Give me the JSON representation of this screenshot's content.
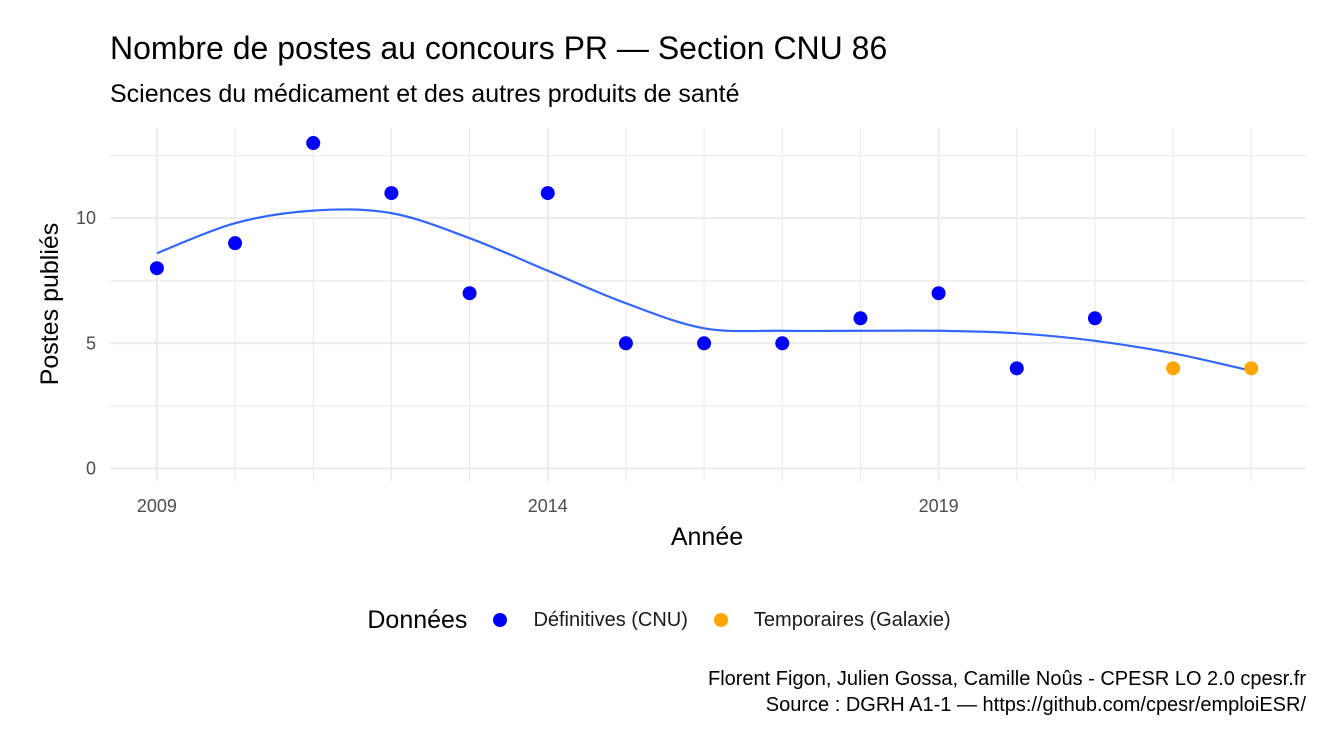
{
  "chart_data": {
    "type": "scatter",
    "title": "Nombre de postes au concours PR  —  Section CNU 86",
    "subtitle": "Sciences du médicament et des autres produits de santé",
    "xlabel": "Année",
    "ylabel": "Postes publiés",
    "xlim": [
      2008.4,
      2023.7
    ],
    "ylim": [
      -0.5,
      13.6
    ],
    "x_ticks": [
      2009,
      2014,
      2019
    ],
    "y_ticks": [
      0,
      5,
      10
    ],
    "grid": true,
    "legend_position": "bottom",
    "legend_title": "Données",
    "series": [
      {
        "name": "Définitives (CNU)",
        "color": "#0000ff",
        "x": [
          2009,
          2010,
          2011,
          2012,
          2013,
          2014,
          2015,
          2016,
          2017,
          2018,
          2019,
          2020,
          2021
        ],
        "y": [
          8,
          9,
          13,
          11,
          7,
          11,
          5,
          5,
          5,
          6,
          7,
          4,
          6
        ]
      },
      {
        "name": "Temporaires (Galaxie)",
        "color": "#ffa500",
        "x": [
          2022,
          2023
        ],
        "y": [
          4,
          4
        ]
      }
    ],
    "smooth_line": {
      "color": "#3366ff",
      "x": [
        2009,
        2010,
        2011,
        2012,
        2013,
        2014,
        2015,
        2016,
        2017,
        2018,
        2019,
        2020,
        2021,
        2022,
        2023
      ],
      "y": [
        8.6,
        9.8,
        10.3,
        10.2,
        9.2,
        7.9,
        6.6,
        5.6,
        5.5,
        5.5,
        5.5,
        5.4,
        5.1,
        4.6,
        3.9
      ]
    }
  },
  "caption": {
    "line1": "Florent Figon, Julien Gossa, Camille Noûs - CPESR LO 2.0 cpesr.fr",
    "line2": "Source : DGRH A1-1 — https://github.com/cpesr/emploiESR/"
  }
}
